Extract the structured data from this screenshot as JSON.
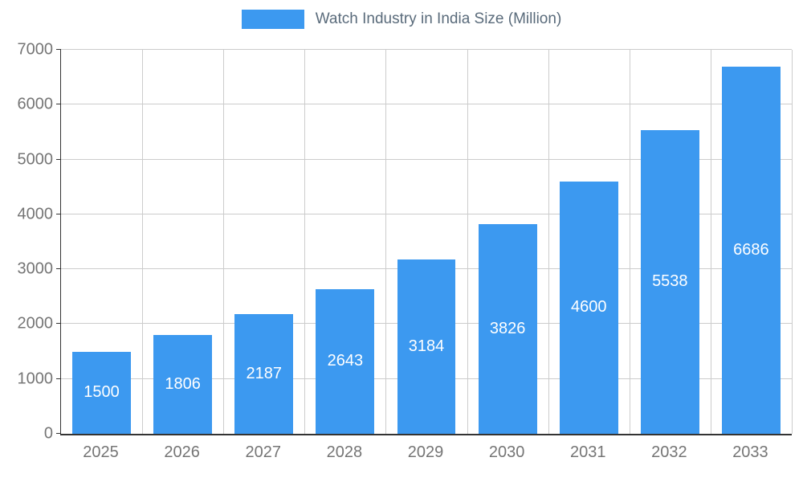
{
  "chart_data": {
    "type": "bar",
    "title": "Watch Industry in India Size (Million)",
    "categories": [
      "2025",
      "2026",
      "2027",
      "2028",
      "2029",
      "2030",
      "2031",
      "2032",
      "2033"
    ],
    "values": [
      1500,
      1806,
      2187,
      2643,
      3184,
      3826,
      4600,
      5538,
      6686
    ],
    "xlabel": "",
    "ylabel": "",
    "ylim": [
      0,
      7000
    ],
    "y_ticks": [
      0,
      1000,
      2000,
      3000,
      4000,
      5000,
      6000,
      7000
    ],
    "grid": true,
    "legend_position": "top",
    "colors": {
      "bar": "#3C99F0",
      "bar_value_label": "#ffffff",
      "grid": "#cccccc",
      "axis": "#333333",
      "tick_label": "#757575",
      "title": "#5a6b7b",
      "background": "#ffffff"
    }
  }
}
